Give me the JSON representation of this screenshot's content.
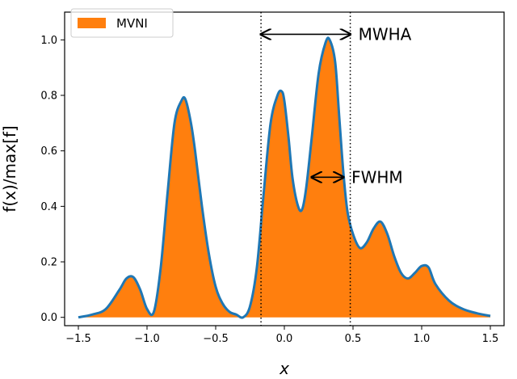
{
  "chart_data": {
    "type": "area",
    "xlabel": "x",
    "ylabel": "f(x)/max[f]",
    "xlim": [
      -1.6,
      1.6
    ],
    "ylim": [
      -0.03,
      1.1
    ],
    "xticks": [
      "−1.5",
      "−1.0",
      "−0.5",
      "0.0",
      "0.5",
      "1.0",
      "1.5"
    ],
    "xtick_values": [
      -1.5,
      -1.0,
      -0.5,
      0.0,
      0.5,
      1.0,
      1.5
    ],
    "yticks": [
      "0.0",
      "0.2",
      "0.4",
      "0.6",
      "0.8",
      "1.0"
    ],
    "ytick_values": [
      0.0,
      0.2,
      0.4,
      0.6,
      0.8,
      1.0
    ],
    "grid": false,
    "legend": {
      "position": "top-left",
      "entries": [
        "MVNI"
      ]
    },
    "series": [
      {
        "name": "MVNI",
        "fill_color": "#ff7f0e",
        "line_color": "#1f77b4",
        "x": [
          -1.5,
          -1.4,
          -1.3,
          -1.2,
          -1.15,
          -1.1,
          -1.05,
          -1.0,
          -0.95,
          -0.9,
          -0.85,
          -0.8,
          -0.75,
          -0.72,
          -0.68,
          -0.65,
          -0.6,
          -0.55,
          -0.5,
          -0.45,
          -0.4,
          -0.35,
          -0.3,
          -0.25,
          -0.2,
          -0.15,
          -0.1,
          -0.05,
          -0.02,
          0.0,
          0.03,
          0.06,
          0.1,
          0.13,
          0.16,
          0.2,
          0.25,
          0.3,
          0.33,
          0.37,
          0.4,
          0.43,
          0.46,
          0.5,
          0.55,
          0.6,
          0.65,
          0.7,
          0.75,
          0.8,
          0.85,
          0.9,
          0.95,
          1.0,
          1.05,
          1.1,
          1.2,
          1.3,
          1.4,
          1.5
        ],
        "y": [
          0.0,
          0.01,
          0.03,
          0.1,
          0.14,
          0.145,
          0.1,
          0.03,
          0.02,
          0.18,
          0.45,
          0.7,
          0.78,
          0.785,
          0.7,
          0.6,
          0.4,
          0.23,
          0.11,
          0.05,
          0.02,
          0.01,
          0.0,
          0.04,
          0.18,
          0.45,
          0.7,
          0.8,
          0.815,
          0.78,
          0.65,
          0.5,
          0.4,
          0.39,
          0.47,
          0.65,
          0.88,
          0.99,
          1.0,
          0.92,
          0.72,
          0.52,
          0.38,
          0.3,
          0.25,
          0.27,
          0.32,
          0.345,
          0.3,
          0.22,
          0.16,
          0.14,
          0.16,
          0.185,
          0.18,
          0.12,
          0.06,
          0.03,
          0.015,
          0.005
        ]
      }
    ],
    "vlines": [
      {
        "x": -0.17,
        "style": "dotted"
      },
      {
        "x": 0.48,
        "style": "dotted"
      }
    ],
    "annotations": [
      {
        "text": "MWHA",
        "arrow": {
          "x1": -0.17,
          "x2": 0.48,
          "y": 1.02
        }
      },
      {
        "text": "FWHM",
        "arrow": {
          "x1": 0.2,
          "x2": 0.43,
          "y": 0.505
        }
      }
    ]
  }
}
